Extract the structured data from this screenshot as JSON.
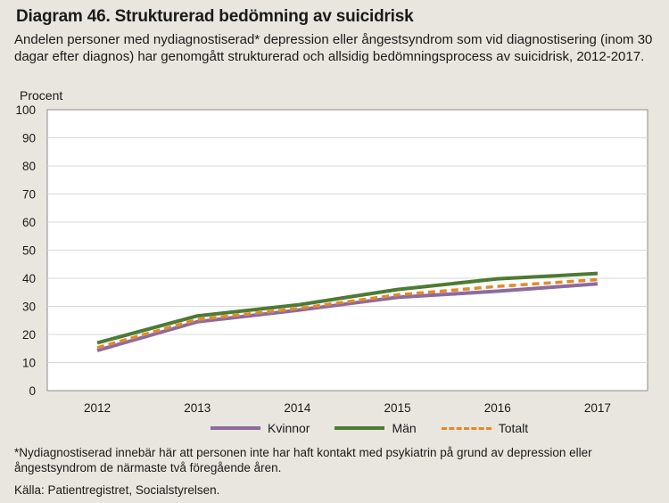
{
  "chart_data": {
    "type": "line",
    "title": "Diagram 46. Strukturerad bedömning av suicidrisk",
    "subtitle": "Andelen personer med nydiagnostiserad* depression eller ångestsyndrom som vid diagnostisering (inom 30 dagar efter diagnos) har genomgått strukturerad och allsidig bedömningsprocess av suicidrisk, 2012-2017.",
    "ylabel": "Procent",
    "xlabel": "",
    "ylim": [
      0,
      100
    ],
    "yticks": [
      0,
      10,
      20,
      30,
      40,
      50,
      60,
      70,
      80,
      90,
      100
    ],
    "categories": [
      "2012",
      "2013",
      "2014",
      "2015",
      "2016",
      "2017"
    ],
    "grid": true,
    "legend_position": "bottom",
    "series": [
      {
        "name": "Kvinnor",
        "color": "#8e6a9e",
        "style": "solid",
        "values": [
          14.3,
          24.5,
          28.6,
          33.2,
          35.4,
          38.0
        ]
      },
      {
        "name": "Män",
        "color": "#4e7a34",
        "style": "solid",
        "values": [
          17.0,
          26.6,
          30.5,
          36.0,
          39.8,
          41.7
        ]
      },
      {
        "name": "Totalt",
        "color": "#e08a2c",
        "style": "dashed",
        "values": [
          15.3,
          25.3,
          29.2,
          34.1,
          37.1,
          39.5
        ]
      }
    ]
  },
  "footnote": "*Nydiagnostiserad innebär här att personen inte har haft kontakt med psykiatrin på grund av depression eller ångestsyndrom de närmaste två föregående åren.",
  "source": "Källa: Patientregistret, Socialstyrelsen."
}
